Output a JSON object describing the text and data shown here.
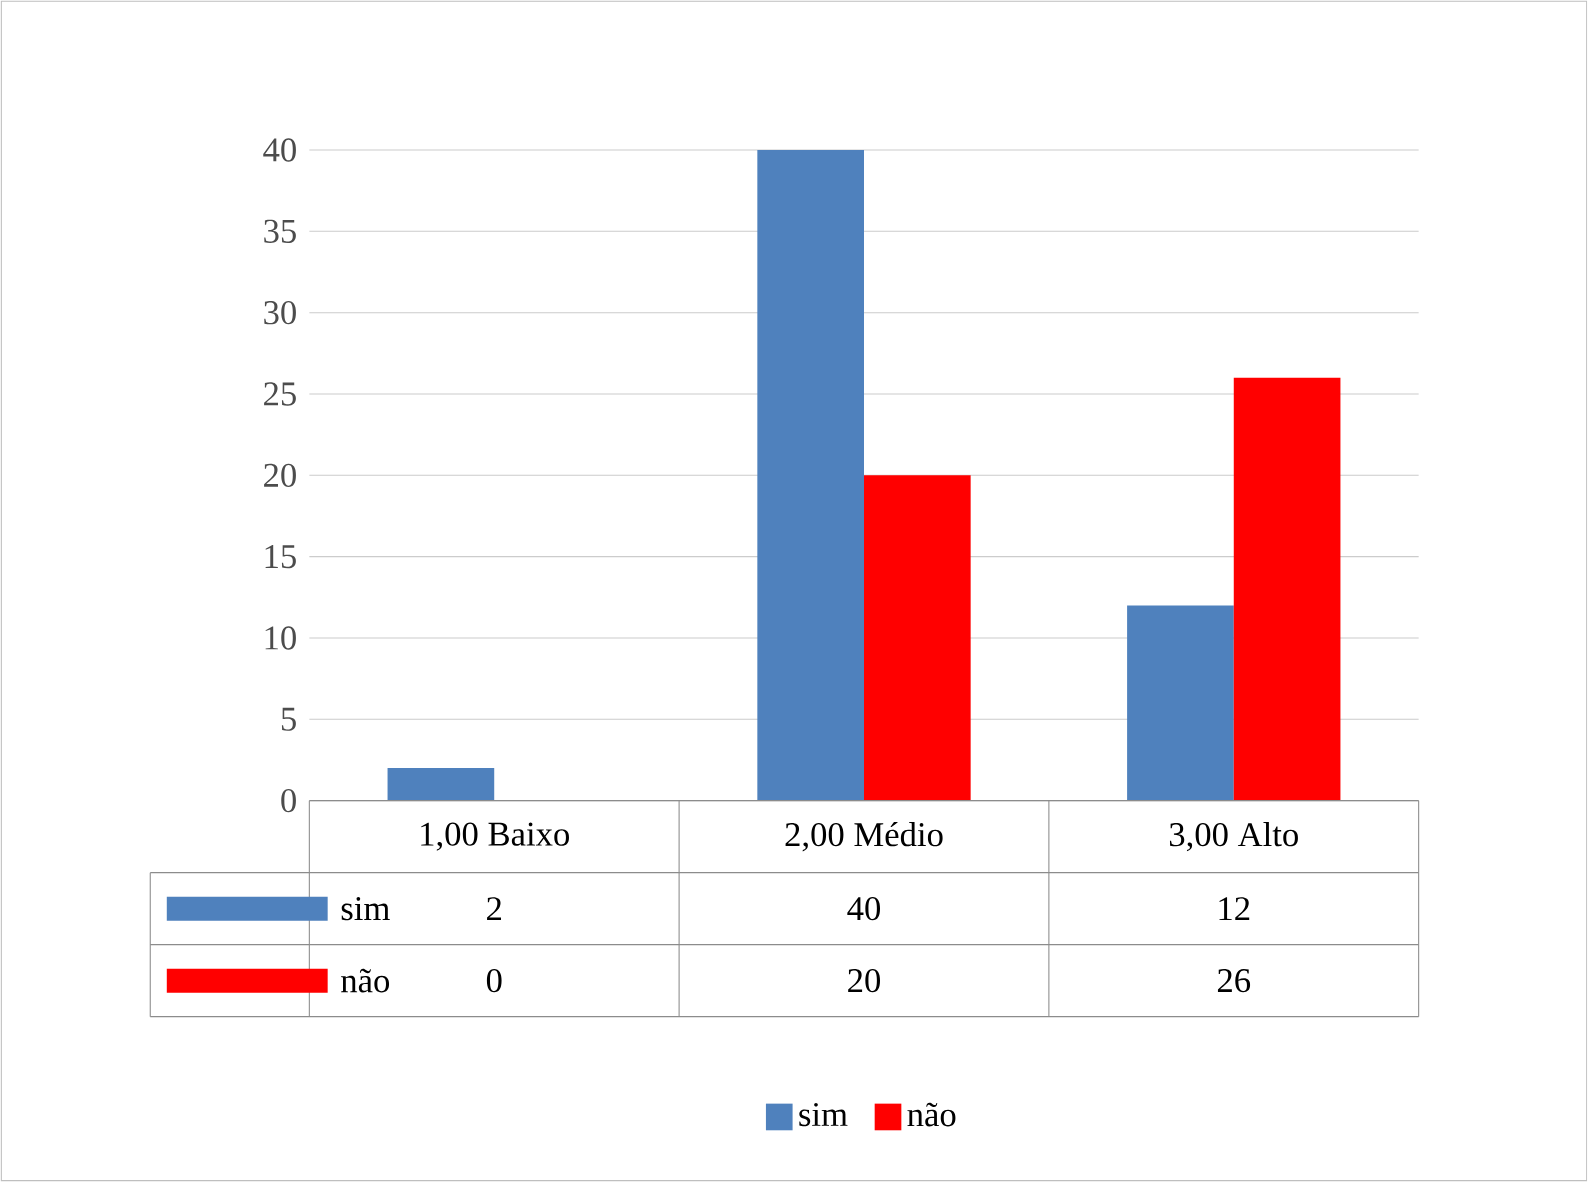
{
  "chart_data": {
    "type": "bar",
    "categories": [
      "1,00 Baixo",
      "2,00 Médio",
      "3,00 Alto"
    ],
    "series": [
      {
        "name": "sim",
        "color": "#4f81bd",
        "values": [
          2,
          40,
          12
        ]
      },
      {
        "name": "não",
        "color": "#ff0000",
        "values": [
          0,
          20,
          26
        ]
      }
    ],
    "ylim": [
      0,
      40
    ],
    "yticks": [
      0,
      5,
      10,
      15,
      20,
      25,
      30,
      35,
      40
    ],
    "grid": "y",
    "legend": "bottom",
    "data_labels": true
  }
}
